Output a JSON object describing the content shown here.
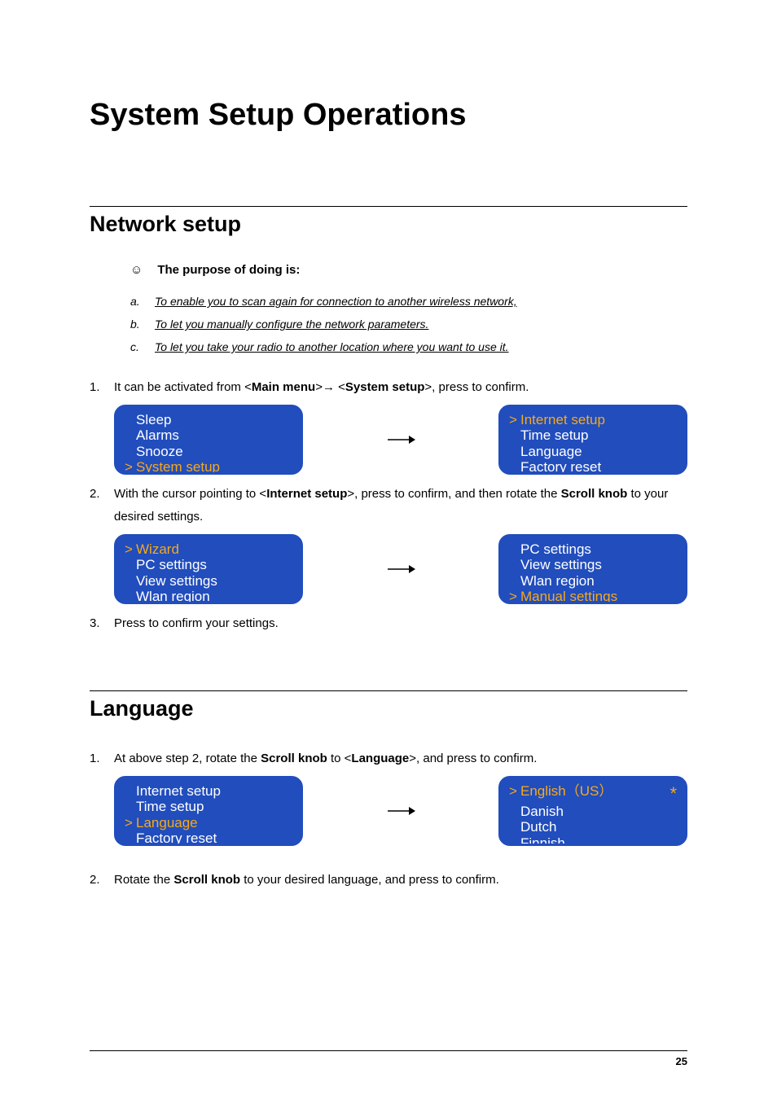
{
  "colors": {
    "screen_bg": "#214dbd",
    "screen_text": "#ffffff",
    "highlight": "#f6a91a",
    "page_bg": "#ffffff",
    "text": "#000000",
    "rule": "#000000"
  },
  "typography": {
    "h1_size_pt": 28,
    "h2_size_pt": 20,
    "body_size_pt": 11,
    "screen_size_pt": 13,
    "font_family": "Arial"
  },
  "page_number": "25",
  "title": "System Setup Operations",
  "section1": {
    "heading": "Network setup",
    "purpose_label": "The purpose of doing is:",
    "purposes": [
      {
        "marker": "a.",
        "text": "To enable you to scan again for connection to another wireless network,"
      },
      {
        "marker": "b.",
        "text": "To let you manually configure the network parameters."
      },
      {
        "marker": "c.",
        "text": "To let you take your radio to another location where you want to use it."
      }
    ],
    "steps": [
      {
        "n": "1.",
        "pre": "It can be activated from <",
        "bold1": "Main menu",
        "mid": ">→ <",
        "bold2": "System setup",
        "post": ">, press to confirm."
      },
      {
        "n": "2.",
        "pre": "With the cursor pointing to <",
        "bold1": "Internet setup",
        "mid": ">, press to confirm, and then rotate the ",
        "bold2": "Scroll knob",
        "post": " to your desired settings."
      },
      {
        "n": "3.",
        "text": "Press to confirm your settings."
      }
    ],
    "screens1": {
      "left": {
        "items": [
          "Sleep",
          "Alarms",
          "Snooze",
          "System setup"
        ],
        "selected": 3
      },
      "right": {
        "items": [
          "Internet  setup",
          "Time  setup",
          "Language",
          "Factory  reset"
        ],
        "selected": 0
      }
    },
    "screens2": {
      "left": {
        "items": [
          "Wizard",
          "PC  settings",
          "View  settings",
          "Wlan  region"
        ],
        "selected": 0
      },
      "right": {
        "items": [
          "PC  settings",
          "View  settings",
          "Wlan  region",
          "Manual  settings"
        ],
        "selected": 3
      }
    }
  },
  "section2": {
    "heading": "Language",
    "steps": [
      {
        "n": "1.",
        "pre": "At above step 2, rotate the ",
        "bold1": "Scroll knob",
        "mid": " to <",
        "bold2": "Language",
        "post": ">, and press to confirm."
      },
      {
        "n": "2.",
        "pre": "Rotate the ",
        "bold1": "Scroll knob",
        "post": " to your desired language, and press to confirm."
      }
    ],
    "screens": {
      "left": {
        "items": [
          "Internet  setup",
          "Time  setup",
          "Language",
          "Factory  reset"
        ],
        "selected": 2
      },
      "right": {
        "items": [
          "English（US）",
          "Danish",
          "Dutch",
          "Finnish"
        ],
        "selected": 0,
        "star": true
      }
    }
  }
}
